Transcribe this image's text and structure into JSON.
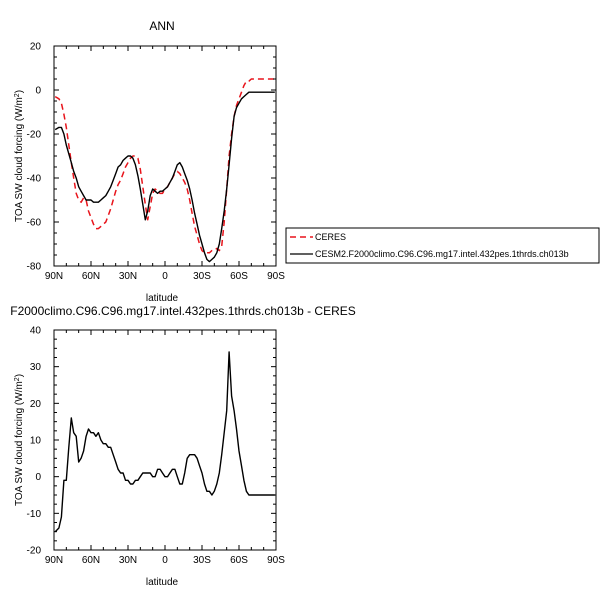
{
  "chart_data": [
    {
      "type": "line",
      "title": "ANN",
      "xlabel": "latitude",
      "ylabel": "TOA SW cloud forcing (W/m²)",
      "xlim": [
        90,
        -90
      ],
      "ylim": [
        -80,
        20
      ],
      "xticks": [
        90,
        60,
        30,
        0,
        -30,
        -60,
        -90
      ],
      "xtick_labels": [
        "90N",
        "60N",
        "30N",
        "0",
        "30S",
        "60S",
        "90S"
      ],
      "yticks": [
        20,
        0,
        -20,
        -40,
        -60,
        -80
      ],
      "ytick_labels": [
        "20",
        "0",
        "-20",
        "-40",
        "-60",
        "-80"
      ],
      "legend_position": "right",
      "series": [
        {
          "name": "CERES",
          "color": "#e8141b",
          "dash": "dashed",
          "x": [
            89,
            86,
            84,
            82,
            80,
            78,
            76,
            74,
            72,
            70,
            68,
            66,
            64,
            62,
            60,
            58,
            56,
            54,
            52,
            50,
            48,
            46,
            44,
            42,
            40,
            38,
            36,
            34,
            32,
            30,
            28,
            26,
            24,
            22,
            20,
            18,
            16,
            14,
            12,
            10,
            8,
            6,
            4,
            2,
            0,
            -2,
            -4,
            -6,
            -8,
            -10,
            -12,
            -14,
            -16,
            -18,
            -20,
            -22,
            -24,
            -26,
            -28,
            -30,
            -32,
            -34,
            -36,
            -38,
            -40,
            -42,
            -44,
            -46,
            -48,
            -50,
            -52,
            -54,
            -56,
            -58,
            -60,
            -62,
            -64,
            -66,
            -68,
            -70,
            -72,
            -74,
            -76,
            -78,
            -80,
            -82,
            -84,
            -86,
            -89
          ],
          "y": [
            -3,
            -4,
            -6,
            -11,
            -17,
            -25,
            -33,
            -40,
            -47,
            -50,
            -51,
            -49,
            -50,
            -55,
            -58,
            -61,
            -63,
            -63,
            -62,
            -61,
            -60,
            -57,
            -54,
            -50,
            -46,
            -43,
            -41,
            -38,
            -35,
            -33,
            -31,
            -30,
            -30,
            -31,
            -36,
            -44,
            -52,
            -59,
            -53,
            -47,
            -45,
            -46,
            -47,
            -47,
            -45,
            -44,
            -42,
            -40,
            -38,
            -37,
            -38,
            -40,
            -42,
            -45,
            -50,
            -56,
            -62,
            -66,
            -70,
            -73,
            -74,
            -74,
            -74,
            -73,
            -73,
            -72,
            -73,
            -71,
            -60,
            -45,
            -30,
            -20,
            -12,
            -7,
            -4,
            -1,
            2,
            4,
            4,
            5,
            5,
            5,
            5,
            5,
            5,
            5,
            5,
            5,
            5
          ]
        },
        {
          "name": "CESM2.F2000climo.C96.C96.mg17.intel.432pes.1thrds.ch013b",
          "color": "#000000",
          "dash": "solid",
          "x": [
            89,
            86,
            84,
            82,
            80,
            78,
            76,
            74,
            72,
            70,
            68,
            66,
            64,
            62,
            60,
            58,
            56,
            54,
            52,
            50,
            48,
            46,
            44,
            42,
            40,
            38,
            36,
            34,
            32,
            30,
            28,
            26,
            24,
            22,
            20,
            18,
            16,
            14,
            12,
            10,
            8,
            6,
            4,
            2,
            0,
            -2,
            -4,
            -6,
            -8,
            -10,
            -12,
            -14,
            -16,
            -18,
            -20,
            -22,
            -24,
            -26,
            -28,
            -30,
            -32,
            -34,
            -36,
            -38,
            -40,
            -42,
            -44,
            -46,
            -48,
            -50,
            -52,
            -54,
            -56,
            -58,
            -60,
            -62,
            -64,
            -66,
            -68,
            -70,
            -72,
            -74,
            -76,
            -78,
            -80,
            -82,
            -84,
            -86,
            -89
          ],
          "y": [
            -18,
            -17,
            -17,
            -20,
            -25,
            -29,
            -33,
            -37,
            -40,
            -44,
            -46,
            -48,
            -50,
            -50,
            -50,
            -51,
            -51,
            -51,
            -50,
            -49,
            -48,
            -46,
            -44,
            -41,
            -38,
            -35,
            -34,
            -32,
            -31,
            -30,
            -30,
            -31,
            -34,
            -39,
            -45,
            -52,
            -59,
            -55,
            -48,
            -45,
            -46,
            -47,
            -46,
            -46,
            -45,
            -44,
            -42,
            -40,
            -37,
            -34,
            -33,
            -35,
            -38,
            -41,
            -45,
            -50,
            -56,
            -61,
            -66,
            -70,
            -74,
            -77,
            -78,
            -77,
            -76,
            -74,
            -70,
            -63,
            -55,
            -45,
            -34,
            -22,
            -12,
            -8,
            -6,
            -4,
            -3,
            -2,
            -1,
            -1,
            -1,
            -1,
            -1,
            -1,
            -1,
            -1,
            -1,
            -1,
            -1
          ]
        }
      ]
    },
    {
      "type": "line",
      "title": "F2000climo.C96.C96.mg17.intel.432pes.1thrds.ch013b - CERES",
      "xlabel": "latitude",
      "ylabel": "TOA SW cloud forcing (W/m²)",
      "xlim": [
        90,
        -90
      ],
      "ylim": [
        -20,
        40
      ],
      "xticks": [
        90,
        60,
        30,
        0,
        -30,
        -60,
        -90
      ],
      "xtick_labels": [
        "90N",
        "60N",
        "30N",
        "0",
        "30S",
        "60S",
        "90S"
      ],
      "yticks": [
        40,
        30,
        20,
        10,
        0,
        -10,
        -20
      ],
      "ytick_labels": [
        "40",
        "30",
        "20",
        "10",
        "0",
        "-10",
        "-20"
      ],
      "series": [
        {
          "color": "#000000",
          "dash": "solid",
          "x": [
            89,
            86,
            84,
            82,
            80,
            78,
            76,
            74,
            72,
            70,
            68,
            66,
            64,
            62,
            60,
            58,
            56,
            54,
            52,
            50,
            48,
            46,
            44,
            42,
            40,
            38,
            36,
            34,
            32,
            30,
            28,
            26,
            24,
            22,
            20,
            18,
            16,
            14,
            12,
            10,
            8,
            6,
            4,
            2,
            0,
            -2,
            -4,
            -6,
            -8,
            -10,
            -12,
            -14,
            -16,
            -18,
            -20,
            -22,
            -24,
            -26,
            -28,
            -30,
            -32,
            -34,
            -36,
            -38,
            -40,
            -42,
            -44,
            -46,
            -48,
            -50,
            -52,
            -54,
            -56,
            -58,
            -60,
            -62,
            -64,
            -66,
            -68,
            -70,
            -72,
            -74,
            -76,
            -78,
            -80,
            -82,
            -84,
            -86,
            -89
          ],
          "y": [
            -15,
            -14,
            -11,
            -1,
            -1,
            8,
            16,
            12,
            11,
            4,
            5,
            7,
            11,
            13,
            12,
            12,
            11,
            12,
            10,
            9,
            9,
            8,
            8,
            6,
            4,
            2,
            1,
            1,
            -1,
            -1,
            -2,
            -2,
            -1,
            -1,
            0,
            1,
            1,
            1,
            1,
            0,
            0,
            2,
            2,
            1,
            0,
            0,
            1,
            2,
            2,
            0,
            -2,
            -2,
            1,
            5,
            6,
            6,
            6,
            5,
            3,
            1,
            -2,
            -4,
            -4,
            -5,
            -4,
            -2,
            1,
            6,
            12,
            18,
            34,
            22,
            18,
            13,
            7,
            3,
            -1,
            -4,
            -5,
            -5,
            -5,
            -5,
            -5,
            -5,
            -5,
            -5,
            -5,
            -5,
            -5
          ]
        }
      ]
    }
  ]
}
